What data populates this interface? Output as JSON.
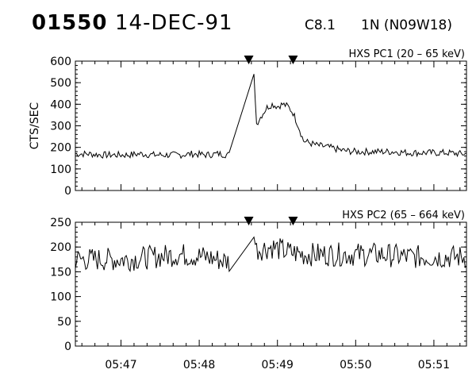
{
  "header": {
    "event_id": "01550",
    "date": "14-DEC-91",
    "goes_class": "C8.1",
    "location": "1N (N09W18)"
  },
  "chart_data": [
    {
      "type": "line",
      "title": "HXS PC1 (20 – 65 keV)",
      "ylabel": "CTS/SEC",
      "xlabel": "",
      "ylim": [
        0,
        600
      ],
      "yticks": [
        0,
        100,
        200,
        300,
        400,
        500,
        600
      ],
      "xlim": [
        "05:46:25",
        "05:51:25"
      ],
      "xticks": [
        "05:47",
        "05:48",
        "05:49",
        "05:50",
        "05:51"
      ],
      "markers": [
        "05:48:38",
        "05:49:12"
      ],
      "grid": false,
      "series": [
        {
          "x": [
            "05:46:25",
            "05:46:35",
            "05:46:45",
            "05:46:55",
            "05:47:05",
            "05:47:15",
            "05:47:25",
            "05:47:35",
            "05:47:45",
            "05:47:55",
            "05:48:05",
            "05:48:15",
            "05:48:23",
            "05:48:42",
            "05:48:44",
            "05:48:48",
            "05:48:52",
            "05:48:56",
            "05:49:00",
            "05:49:04",
            "05:49:08",
            "05:49:12",
            "05:49:16",
            "05:49:20",
            "05:49:30",
            "05:49:40",
            "05:49:50",
            "05:50:00",
            "05:50:10",
            "05:50:20",
            "05:50:30",
            "05:50:40",
            "05:50:50",
            "05:51:00",
            "05:51:10",
            "05:51:20",
            "05:51:25"
          ],
          "values": [
            170,
            170,
            165,
            165,
            165,
            170,
            165,
            165,
            165,
            170,
            165,
            170,
            165,
            540,
            310,
            350,
            385,
            400,
            390,
            400,
            390,
            360,
            300,
            230,
            210,
            200,
            185,
            180,
            180,
            180,
            180,
            175,
            175,
            175,
            175,
            170,
            170
          ]
        }
      ]
    },
    {
      "type": "line",
      "title": "HXS PC2 (65 – 664 keV)",
      "ylabel": "",
      "xlabel": "",
      "ylim": [
        0,
        250
      ],
      "yticks": [
        0,
        50,
        100,
        150,
        200,
        250
      ],
      "xlim": [
        "05:46:25",
        "05:51:25"
      ],
      "xticks": [
        "05:47",
        "05:48",
        "05:49",
        "05:50",
        "05:51"
      ],
      "markers": [
        "05:48:38",
        "05:49:12"
      ],
      "grid": false,
      "series": [
        {
          "x": [
            "05:46:25",
            "05:46:45",
            "05:47:05",
            "05:47:25",
            "05:47:45",
            "05:48:05",
            "05:48:23",
            "05:48:42",
            "05:48:44",
            "05:48:56",
            "05:49:08",
            "05:49:20",
            "05:49:40",
            "05:50:00",
            "05:50:20",
            "05:50:40",
            "05:51:00",
            "05:51:25"
          ],
          "values": [
            175,
            175,
            175,
            180,
            185,
            180,
            170,
            220,
            195,
            200,
            190,
            185,
            185,
            185,
            185,
            180,
            180,
            180
          ]
        }
      ]
    }
  ]
}
